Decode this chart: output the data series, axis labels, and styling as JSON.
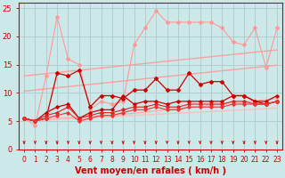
{
  "background_color": "#cce8e8",
  "grid_color": "#aacccc",
  "xlabel": "Vent moyen/en rafales ( km/h )",
  "xlim": [
    -0.5,
    23.5
  ],
  "ylim": [
    0,
    26
  ],
  "yticks": [
    0,
    5,
    10,
    15,
    20,
    25
  ],
  "xticks": [
    0,
    1,
    2,
    3,
    4,
    5,
    6,
    7,
    8,
    9,
    10,
    11,
    12,
    13,
    14,
    15,
    16,
    17,
    18,
    19,
    20,
    21,
    22,
    23
  ],
  "x": [
    0,
    1,
    2,
    3,
    4,
    5,
    6,
    7,
    8,
    9,
    10,
    11,
    12,
    13,
    14,
    15,
    16,
    17,
    18,
    19,
    20,
    21,
    22,
    23
  ],
  "light_color1": "#ff9999",
  "light_color2": "#ffaaaa",
  "light_color3": "#ffbbbb",
  "dark_color1": "#cc0000",
  "dark_color2": "#dd2222",
  "dark_color3": "#ee3333",
  "trend_line1": [
    10.3,
    10.5,
    10.7,
    10.9,
    11.1,
    11.3,
    11.5,
    11.7,
    11.9,
    12.1,
    12.3,
    12.5,
    12.7,
    12.9,
    13.1,
    13.3,
    13.5,
    13.7,
    13.9,
    14.1,
    14.3,
    14.5,
    14.7,
    14.9
  ],
  "trend_line2": [
    13.0,
    13.2,
    13.4,
    13.6,
    13.8,
    14.0,
    14.2,
    14.4,
    14.6,
    14.8,
    15.0,
    15.2,
    15.4,
    15.6,
    15.8,
    16.0,
    16.2,
    16.4,
    16.6,
    16.8,
    17.0,
    17.2,
    17.4,
    17.6
  ],
  "trend_line3": [
    5.2,
    5.3,
    5.4,
    5.5,
    5.6,
    5.7,
    5.8,
    5.9,
    6.0,
    6.2,
    6.4,
    6.6,
    6.8,
    7.0,
    7.2,
    7.4,
    7.6,
    7.8,
    8.0,
    8.2,
    8.4,
    8.6,
    8.8,
    9.0
  ],
  "trend_line4": [
    5.0,
    5.1,
    5.2,
    5.3,
    5.4,
    5.5,
    5.6,
    5.7,
    5.8,
    5.9,
    6.0,
    6.1,
    6.2,
    6.3,
    6.4,
    6.5,
    6.6,
    6.7,
    6.8,
    6.9,
    7.0,
    7.1,
    7.2,
    7.3
  ],
  "data_line1_y": [
    5.5,
    4.2,
    13.0,
    23.5,
    16.0,
    15.0,
    7.0,
    8.5,
    8.0,
    8.5,
    18.5,
    21.5,
    24.5,
    22.5,
    22.5,
    22.5,
    22.5,
    22.5,
    21.5,
    19.0,
    18.5,
    21.5,
    14.5,
    21.5
  ],
  "data_line2_y": [
    5.5,
    5.0,
    5.5,
    13.5,
    13.0,
    14.0,
    7.5,
    9.5,
    9.5,
    9.0,
    10.5,
    10.5,
    12.5,
    10.5,
    10.5,
    13.5,
    11.5,
    12.0,
    12.0,
    9.5,
    9.5,
    8.5,
    8.0,
    8.5
  ],
  "data_line3_y": [
    5.5,
    5.0,
    6.5,
    7.5,
    8.0,
    5.5,
    6.5,
    7.0,
    7.0,
    9.5,
    8.0,
    8.5,
    8.5,
    8.0,
    8.5,
    8.5,
    8.5,
    8.5,
    8.5,
    9.5,
    9.5,
    8.5,
    8.5,
    9.5
  ],
  "data_line4_y": [
    5.5,
    5.0,
    6.0,
    6.5,
    7.5,
    5.5,
    6.0,
    6.5,
    6.5,
    7.0,
    7.5,
    7.5,
    8.0,
    7.5,
    7.5,
    8.0,
    8.0,
    8.0,
    8.0,
    8.5,
    8.5,
    8.0,
    8.0,
    8.5
  ],
  "data_line5_y": [
    5.5,
    5.0,
    5.5,
    6.0,
    6.5,
    5.0,
    5.5,
    6.0,
    6.0,
    6.5,
    7.0,
    7.0,
    7.5,
    7.0,
    7.0,
    7.5,
    7.5,
    7.5,
    7.5,
    8.0,
    8.0,
    8.0,
    8.0,
    8.5
  ],
  "label_color": "#cc0000",
  "tick_color": "#cc0000",
  "spine_color": "#cc0000",
  "xlabel_fontsize": 7,
  "tick_fontsize": 5.5
}
